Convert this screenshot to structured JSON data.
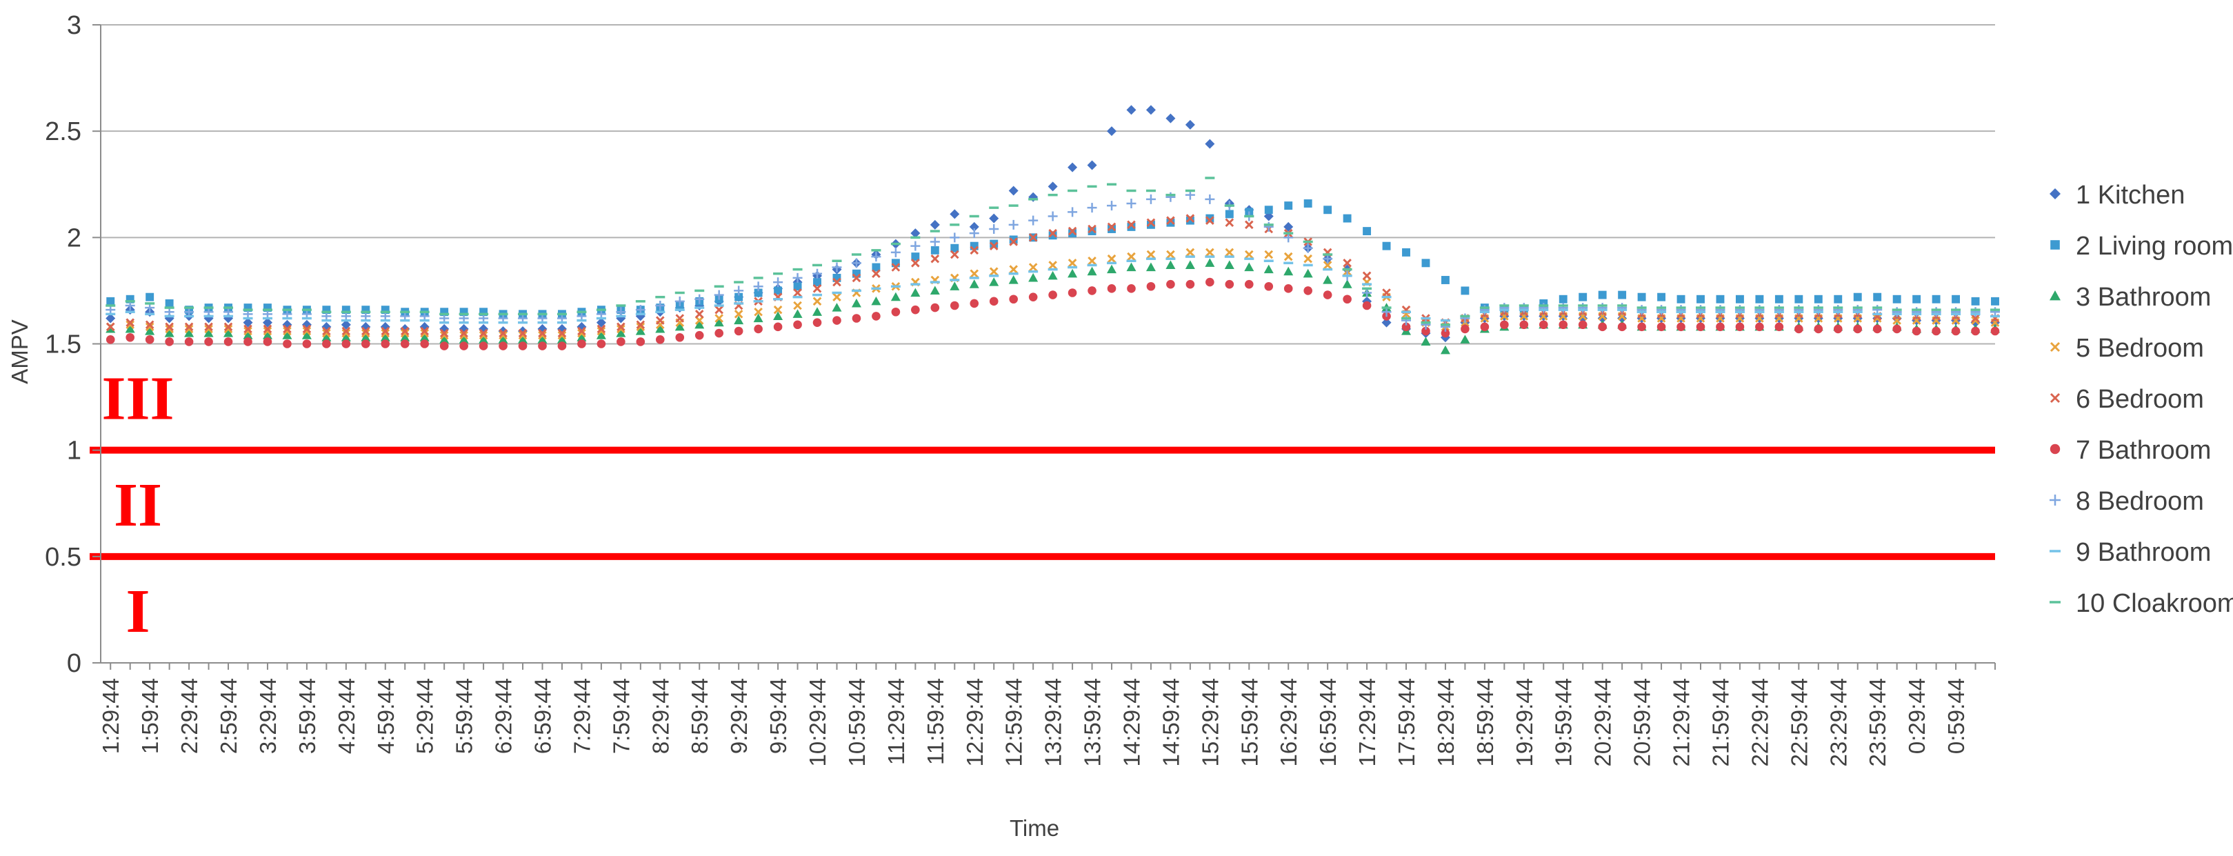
{
  "chart_data": {
    "type": "scatter",
    "title": "",
    "xlabel": "Time",
    "ylabel": "AMPV",
    "ylim": [
      0,
      3
    ],
    "yticks": [
      "0",
      "0.5",
      "1",
      "1.5",
      "2",
      "2.5",
      "3"
    ],
    "grid": "horizontal",
    "legend_position": "right",
    "x_start": "1:29:44",
    "x_end": "1:14:44",
    "x_interval_minutes": 15,
    "x_tick_labels": [
      "1:29:44",
      "1:59:44",
      "2:29:44",
      "2:59:44",
      "3:29:44",
      "3:59:44",
      "4:29:44",
      "4:59:44",
      "5:29:44",
      "5:59:44",
      "6:29:44",
      "6:59:44",
      "7:29:44",
      "7:59:44",
      "8:29:44",
      "8:59:44",
      "9:29:44",
      "9:59:44",
      "10:29:44",
      "10:59:44",
      "11:29:44",
      "11:59:44",
      "12:29:44",
      "12:59:44",
      "13:29:44",
      "13:59:44",
      "14:29:44",
      "14:59:44",
      "15:29:44",
      "15:59:44",
      "16:29:44",
      "16:59:44",
      "17:29:44",
      "17:59:44",
      "18:29:44",
      "18:59:44",
      "19:29:44",
      "19:59:44",
      "20:29:44",
      "20:59:44",
      "21:29:44",
      "21:59:44",
      "22:29:44",
      "22:59:44",
      "23:29:44",
      "23:59:44",
      "0:29:44",
      "0:59:44"
    ],
    "thresholds": [
      {
        "value": 1.0,
        "color": "#ff0000"
      },
      {
        "value": 0.5,
        "color": "#ff0000"
      }
    ],
    "zones": [
      {
        "label": "III",
        "y": 1.25
      },
      {
        "label": "II",
        "y": 0.75
      },
      {
        "label": "I",
        "y": 0.25
      }
    ],
    "series": [
      {
        "name": "1 Kitchen",
        "marker": "diamond",
        "color": "#4472c4",
        "values": [
          1.62,
          1.66,
          1.65,
          1.62,
          1.63,
          1.62,
          1.62,
          1.6,
          1.6,
          1.59,
          1.59,
          1.58,
          1.59,
          1.58,
          1.58,
          1.57,
          1.58,
          1.57,
          1.57,
          1.57,
          1.56,
          1.56,
          1.57,
          1.57,
          1.58,
          1.6,
          1.62,
          1.63,
          1.65,
          1.67,
          1.68,
          1.7,
          1.72,
          1.74,
          1.76,
          1.79,
          1.82,
          1.85,
          1.88,
          1.92,
          1.97,
          2.02,
          2.06,
          2.11,
          2.05,
          2.09,
          2.22,
          2.19,
          2.24,
          2.33,
          2.34,
          2.5,
          2.6,
          2.6,
          2.56,
          2.53,
          2.44,
          2.16,
          2.13,
          2.1,
          2.05,
          1.95,
          1.9,
          1.85,
          1.7,
          1.6,
          1.57,
          1.55,
          1.53,
          1.6,
          1.62,
          1.63,
          1.63,
          1.63,
          1.63,
          1.62,
          1.62,
          1.62,
          1.62,
          1.62,
          1.62,
          1.62,
          1.62,
          1.62,
          1.62,
          1.62,
          1.62,
          1.62,
          1.62,
          1.62,
          1.62,
          1.62,
          1.61,
          1.61,
          1.61,
          1.6,
          1.6
        ]
      },
      {
        "name": "2 Living room",
        "marker": "square",
        "color": "#3d9ad1",
        "values": [
          1.7,
          1.71,
          1.72,
          1.69,
          1.66,
          1.67,
          1.67,
          1.67,
          1.67,
          1.66,
          1.66,
          1.66,
          1.66,
          1.66,
          1.66,
          1.65,
          1.65,
          1.65,
          1.65,
          1.65,
          1.64,
          1.64,
          1.64,
          1.64,
          1.65,
          1.66,
          1.66,
          1.66,
          1.67,
          1.68,
          1.7,
          1.71,
          1.72,
          1.74,
          1.75,
          1.77,
          1.79,
          1.81,
          1.83,
          1.86,
          1.88,
          1.91,
          1.94,
          1.95,
          1.96,
          1.97,
          1.99,
          2.0,
          2.01,
          2.02,
          2.03,
          2.04,
          2.05,
          2.06,
          2.07,
          2.08,
          2.09,
          2.11,
          2.12,
          2.13,
          2.15,
          2.16,
          2.13,
          2.09,
          2.03,
          1.96,
          1.93,
          1.88,
          1.8,
          1.75,
          1.67,
          1.66,
          1.66,
          1.69,
          1.71,
          1.72,
          1.73,
          1.73,
          1.72,
          1.72,
          1.71,
          1.71,
          1.71,
          1.71,
          1.71,
          1.71,
          1.71,
          1.71,
          1.71,
          1.72,
          1.72,
          1.71,
          1.71,
          1.71,
          1.71,
          1.7,
          1.7
        ]
      },
      {
        "name": "3 Bathroom",
        "marker": "triangle",
        "color": "#2ea86b",
        "values": [
          1.57,
          1.57,
          1.56,
          1.55,
          1.55,
          1.55,
          1.55,
          1.54,
          1.54,
          1.54,
          1.54,
          1.53,
          1.53,
          1.53,
          1.53,
          1.53,
          1.53,
          1.52,
          1.52,
          1.52,
          1.52,
          1.52,
          1.52,
          1.52,
          1.53,
          1.54,
          1.55,
          1.56,
          1.57,
          1.58,
          1.59,
          1.6,
          1.61,
          1.62,
          1.63,
          1.64,
          1.65,
          1.67,
          1.69,
          1.7,
          1.72,
          1.74,
          1.75,
          1.77,
          1.78,
          1.79,
          1.8,
          1.81,
          1.82,
          1.83,
          1.84,
          1.85,
          1.86,
          1.86,
          1.87,
          1.87,
          1.88,
          1.87,
          1.86,
          1.85,
          1.84,
          1.83,
          1.8,
          1.78,
          1.74,
          1.67,
          1.56,
          1.51,
          1.47,
          1.52,
          1.57,
          1.58,
          1.59,
          1.59,
          1.59,
          1.59,
          1.59,
          1.59,
          1.58,
          1.58,
          1.58,
          1.58,
          1.58,
          1.58,
          1.58,
          1.58,
          1.58,
          1.58,
          1.58,
          1.58,
          1.58,
          1.58,
          1.57,
          1.57,
          1.57,
          1.57,
          1.57
        ]
      },
      {
        "name": "5 Bedroom",
        "marker": "cross",
        "color": "#e8a33d",
        "values": [
          1.58,
          1.59,
          1.58,
          1.57,
          1.57,
          1.57,
          1.57,
          1.56,
          1.56,
          1.56,
          1.56,
          1.55,
          1.55,
          1.55,
          1.55,
          1.55,
          1.55,
          1.54,
          1.54,
          1.54,
          1.54,
          1.54,
          1.54,
          1.54,
          1.55,
          1.56,
          1.57,
          1.58,
          1.59,
          1.6,
          1.61,
          1.62,
          1.64,
          1.65,
          1.66,
          1.68,
          1.7,
          1.72,
          1.74,
          1.76,
          1.77,
          1.79,
          1.8,
          1.81,
          1.83,
          1.84,
          1.85,
          1.86,
          1.87,
          1.88,
          1.89,
          1.9,
          1.91,
          1.92,
          1.92,
          1.93,
          1.93,
          1.93,
          1.92,
          1.92,
          1.91,
          1.9,
          1.87,
          1.84,
          1.79,
          1.72,
          1.64,
          1.6,
          1.58,
          1.6,
          1.62,
          1.63,
          1.63,
          1.63,
          1.63,
          1.63,
          1.63,
          1.63,
          1.62,
          1.62,
          1.62,
          1.62,
          1.62,
          1.62,
          1.62,
          1.62,
          1.62,
          1.62,
          1.62,
          1.62,
          1.62,
          1.61,
          1.61,
          1.61,
          1.61,
          1.61,
          1.6
        ]
      },
      {
        "name": "6 Bedroom",
        "marker": "cross",
        "color": "#d9644f",
        "values": [
          1.58,
          1.6,
          1.59,
          1.58,
          1.58,
          1.58,
          1.58,
          1.57,
          1.57,
          1.57,
          1.57,
          1.56,
          1.56,
          1.56,
          1.56,
          1.56,
          1.56,
          1.55,
          1.55,
          1.55,
          1.55,
          1.55,
          1.55,
          1.55,
          1.56,
          1.57,
          1.58,
          1.59,
          1.61,
          1.62,
          1.64,
          1.66,
          1.68,
          1.7,
          1.72,
          1.74,
          1.76,
          1.79,
          1.81,
          1.83,
          1.86,
          1.88,
          1.9,
          1.92,
          1.94,
          1.96,
          1.98,
          2.0,
          2.02,
          2.03,
          2.04,
          2.05,
          2.06,
          2.07,
          2.08,
          2.09,
          2.08,
          2.07,
          2.06,
          2.04,
          2.02,
          1.98,
          1.93,
          1.88,
          1.82,
          1.74,
          1.66,
          1.62,
          1.6,
          1.62,
          1.64,
          1.65,
          1.65,
          1.65,
          1.65,
          1.65,
          1.65,
          1.65,
          1.64,
          1.64,
          1.64,
          1.64,
          1.64,
          1.64,
          1.64,
          1.64,
          1.64,
          1.64,
          1.64,
          1.64,
          1.63,
          1.63,
          1.63,
          1.63,
          1.63,
          1.62,
          1.62
        ]
      },
      {
        "name": "7 Bathroom",
        "marker": "circle",
        "color": "#d9444f",
        "values": [
          1.52,
          1.53,
          1.52,
          1.51,
          1.51,
          1.51,
          1.51,
          1.51,
          1.51,
          1.5,
          1.5,
          1.5,
          1.5,
          1.5,
          1.5,
          1.5,
          1.5,
          1.49,
          1.49,
          1.49,
          1.49,
          1.49,
          1.49,
          1.49,
          1.5,
          1.5,
          1.51,
          1.51,
          1.52,
          1.53,
          1.54,
          1.55,
          1.56,
          1.57,
          1.58,
          1.59,
          1.6,
          1.61,
          1.62,
          1.63,
          1.65,
          1.66,
          1.67,
          1.68,
          1.69,
          1.7,
          1.71,
          1.72,
          1.73,
          1.74,
          1.75,
          1.76,
          1.76,
          1.77,
          1.78,
          1.78,
          1.79,
          1.78,
          1.78,
          1.77,
          1.76,
          1.75,
          1.73,
          1.71,
          1.68,
          1.63,
          1.58,
          1.56,
          1.55,
          1.57,
          1.58,
          1.59,
          1.59,
          1.59,
          1.59,
          1.59,
          1.58,
          1.58,
          1.58,
          1.58,
          1.58,
          1.58,
          1.58,
          1.58,
          1.58,
          1.58,
          1.57,
          1.57,
          1.57,
          1.57,
          1.57,
          1.57,
          1.56,
          1.56,
          1.56,
          1.56,
          1.56
        ]
      },
      {
        "name": "8 Bedroom",
        "marker": "plus",
        "color": "#7fa6e0",
        "values": [
          1.66,
          1.68,
          1.67,
          1.65,
          1.65,
          1.65,
          1.65,
          1.64,
          1.64,
          1.64,
          1.64,
          1.63,
          1.63,
          1.63,
          1.63,
          1.63,
          1.63,
          1.62,
          1.62,
          1.62,
          1.62,
          1.62,
          1.62,
          1.62,
          1.63,
          1.64,
          1.65,
          1.66,
          1.68,
          1.7,
          1.71,
          1.73,
          1.75,
          1.77,
          1.79,
          1.81,
          1.83,
          1.86,
          1.88,
          1.91,
          1.93,
          1.96,
          1.98,
          2.0,
          2.02,
          2.04,
          2.06,
          2.08,
          2.1,
          2.12,
          2.14,
          2.15,
          2.16,
          2.18,
          2.19,
          2.2,
          2.18,
          2.15,
          2.1,
          2.05,
          2.0,
          1.95,
          1.9,
          1.82,
          1.74,
          1.65,
          1.61,
          1.59,
          1.58,
          1.62,
          1.66,
          1.67,
          1.67,
          1.67,
          1.67,
          1.67,
          1.67,
          1.67,
          1.66,
          1.66,
          1.66,
          1.66,
          1.66,
          1.66,
          1.66,
          1.66,
          1.66,
          1.66,
          1.66,
          1.66,
          1.66,
          1.65,
          1.65,
          1.65,
          1.65,
          1.65,
          1.65
        ]
      },
      {
        "name": "9 Bathroom",
        "marker": "dash",
        "color": "#74c2e8",
        "values": [
          1.64,
          1.65,
          1.64,
          1.63,
          1.63,
          1.63,
          1.63,
          1.62,
          1.62,
          1.62,
          1.62,
          1.61,
          1.61,
          1.61,
          1.61,
          1.61,
          1.61,
          1.6,
          1.6,
          1.6,
          1.6,
          1.6,
          1.6,
          1.6,
          1.61,
          1.62,
          1.63,
          1.64,
          1.65,
          1.66,
          1.67,
          1.68,
          1.69,
          1.7,
          1.71,
          1.72,
          1.73,
          1.74,
          1.75,
          1.76,
          1.77,
          1.78,
          1.79,
          1.8,
          1.81,
          1.82,
          1.83,
          1.84,
          1.85,
          1.86,
          1.87,
          1.88,
          1.89,
          1.9,
          1.9,
          1.91,
          1.91,
          1.91,
          1.9,
          1.89,
          1.88,
          1.87,
          1.85,
          1.82,
          1.78,
          1.72,
          1.65,
          1.62,
          1.61,
          1.63,
          1.65,
          1.66,
          1.66,
          1.66,
          1.66,
          1.66,
          1.66,
          1.66,
          1.65,
          1.65,
          1.65,
          1.65,
          1.65,
          1.65,
          1.65,
          1.65,
          1.65,
          1.65,
          1.65,
          1.65,
          1.64,
          1.64,
          1.64,
          1.64,
          1.64,
          1.64,
          1.63
        ]
      },
      {
        "name": "10 Cloakroom",
        "marker": "dash",
        "color": "#5cc29a",
        "values": [
          1.68,
          1.7,
          1.69,
          1.67,
          1.67,
          1.67,
          1.67,
          1.66,
          1.66,
          1.66,
          1.66,
          1.65,
          1.65,
          1.65,
          1.65,
          1.65,
          1.65,
          1.64,
          1.64,
          1.64,
          1.64,
          1.64,
          1.64,
          1.64,
          1.65,
          1.66,
          1.68,
          1.7,
          1.72,
          1.74,
          1.75,
          1.77,
          1.79,
          1.81,
          1.83,
          1.85,
          1.87,
          1.89,
          1.92,
          1.94,
          1.97,
          2.0,
          2.03,
          2.06,
          2.1,
          2.14,
          2.15,
          2.18,
          2.2,
          2.22,
          2.24,
          2.25,
          2.22,
          2.22,
          2.2,
          2.22,
          2.28,
          2.15,
          2.1,
          2.06,
          2.02,
          1.98,
          1.92,
          1.85,
          1.76,
          1.67,
          1.62,
          1.6,
          1.59,
          1.63,
          1.67,
          1.68,
          1.68,
          1.68,
          1.68,
          1.68,
          1.68,
          1.68,
          1.67,
          1.67,
          1.67,
          1.67,
          1.67,
          1.67,
          1.67,
          1.67,
          1.67,
          1.67,
          1.67,
          1.67,
          1.67,
          1.66,
          1.66,
          1.66,
          1.66,
          1.66,
          1.66
        ]
      }
    ]
  }
}
